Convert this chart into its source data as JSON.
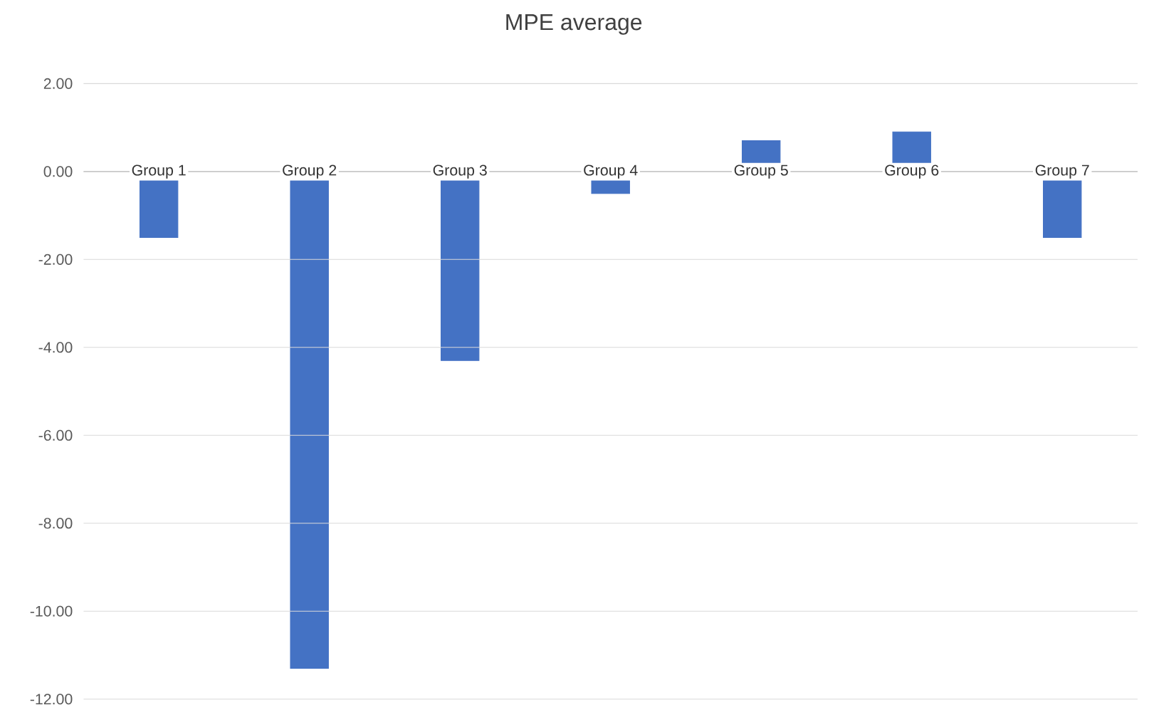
{
  "chart_data": {
    "type": "bar",
    "title": "MPE average",
    "categories": [
      "Group 1",
      "Group 2",
      "Group 3",
      "Group 4",
      "Group 5",
      "Group 6",
      "Group 7"
    ],
    "values": [
      -1.5,
      -11.3,
      -4.3,
      -0.5,
      0.7,
      0.9,
      -1.5
    ],
    "color": "#4472c4",
    "ylim": [
      -12,
      2
    ],
    "yticks": [
      {
        "value": 2,
        "label": "2.00"
      },
      {
        "value": 0,
        "label": "0.00"
      },
      {
        "value": -2,
        "label": "-2.00"
      },
      {
        "value": -4,
        "label": "-4.00"
      },
      {
        "value": -6,
        "label": "-6.00"
      },
      {
        "value": -8,
        "label": "-8.00"
      },
      {
        "value": -10,
        "label": "-10.00"
      },
      {
        "value": -12,
        "label": "-12.00"
      }
    ],
    "grid": "y"
  }
}
